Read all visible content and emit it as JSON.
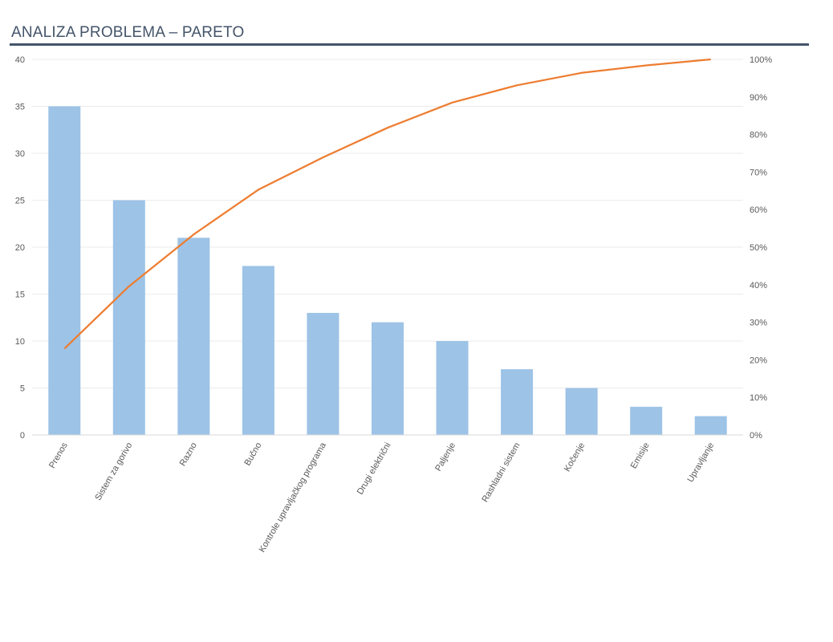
{
  "header": {
    "title": "ANALIZA PROBLEMA – PARETO"
  },
  "colors": {
    "bar": "#9dc3e6",
    "line": "#ed7d31",
    "grid": "#ebebeb",
    "title_rule": "#44546a"
  },
  "chart_data": {
    "type": "bar",
    "title": "ANALIZA PROBLEMA – PARETO",
    "categories": [
      "Prenos",
      "Sistem za gorivo",
      "Razno",
      "Bučno",
      "Kontrole upravljačkog programa",
      "Drugi električni",
      "Paljenje",
      "Rashladni sistem",
      "Kočenje",
      "Emisije",
      "Upravljanje"
    ],
    "series": [
      {
        "type": "bar",
        "axis": "left",
        "values": [
          35,
          25,
          21,
          18,
          13,
          12,
          10,
          7,
          5,
          3,
          2
        ]
      },
      {
        "type": "line",
        "axis": "right",
        "values": [
          23.0,
          39.6,
          53.4,
          65.3,
          73.9,
          81.8,
          88.5,
          93.1,
          96.4,
          98.4,
          100
        ]
      }
    ],
    "ylim": [
      0,
      40
    ],
    "yticks": [
      "0",
      "5",
      "10",
      "15",
      "20",
      "25",
      "30",
      "35",
      "40"
    ],
    "y2lim": [
      0,
      100
    ],
    "y2ticks": [
      "0%",
      "10%",
      "20%",
      "30%",
      "40%",
      "50%",
      "60%",
      "70%",
      "80%",
      "90%",
      "100%"
    ],
    "grid": true,
    "legend": "none"
  }
}
